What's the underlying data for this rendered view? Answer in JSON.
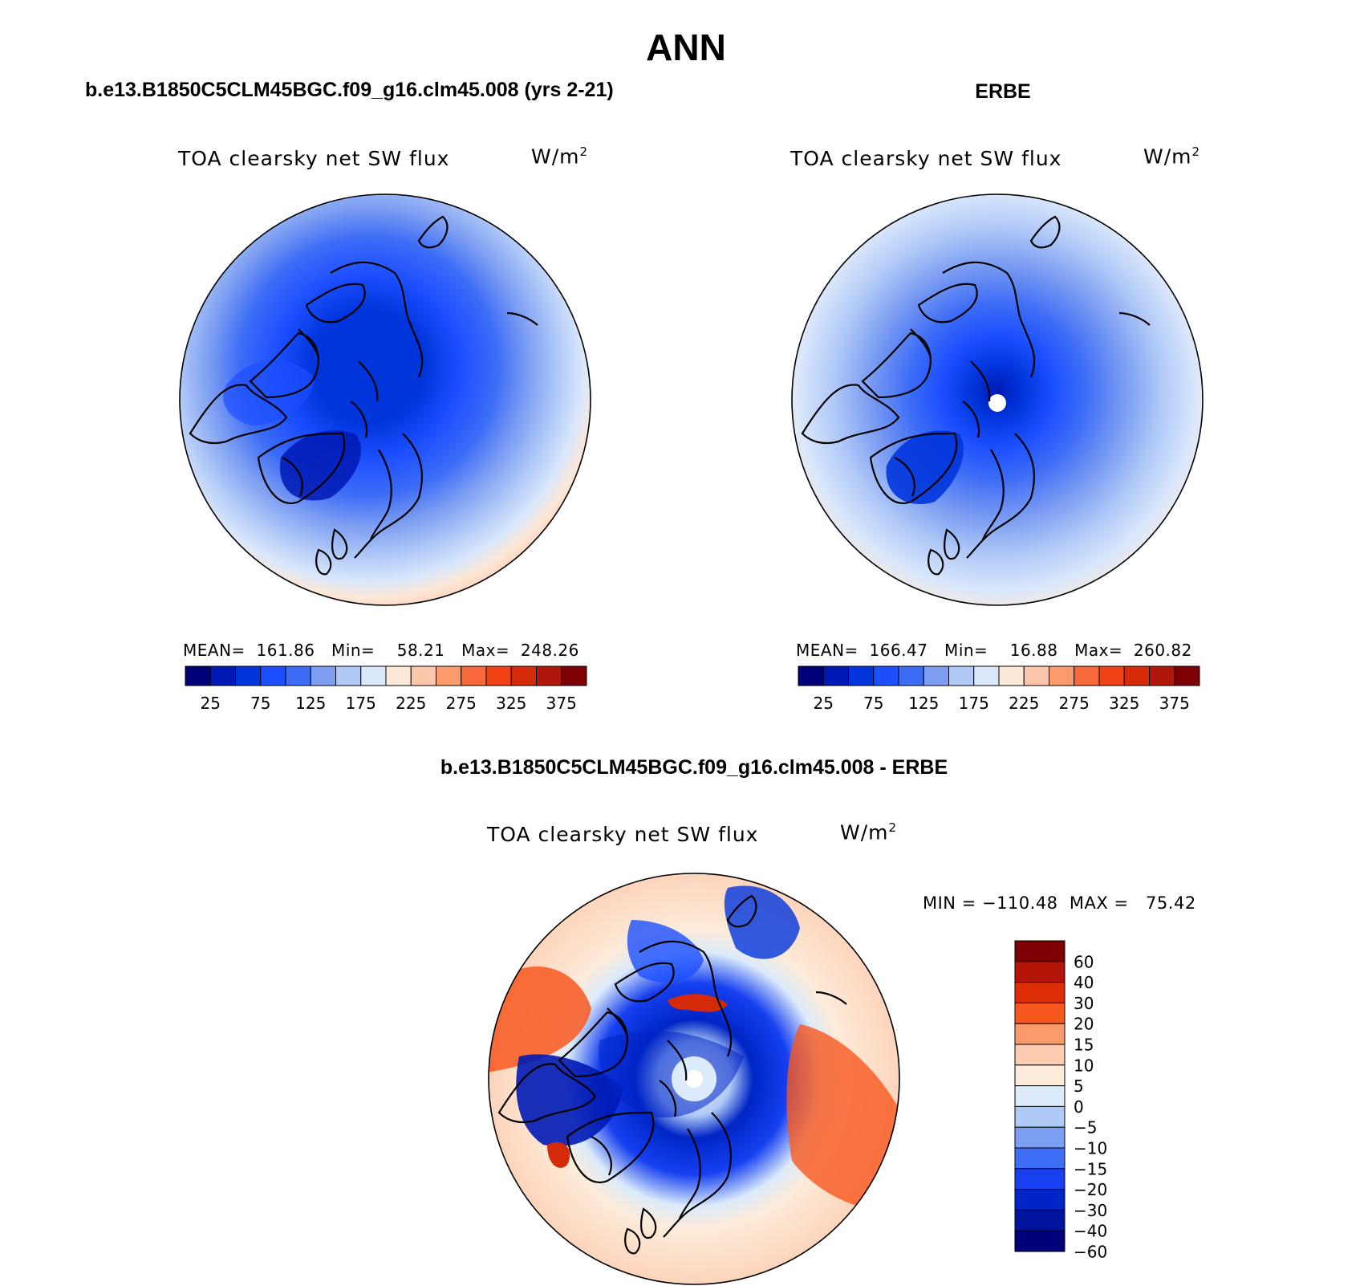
{
  "page": {
    "title": "ANN"
  },
  "panels": {
    "model": {
      "case_title": "b.e13.B1850C5CLM45BGC.f09_g16.clm45.008 (yrs 2-21)",
      "variable_label": "TOA clearsky net SW flux",
      "units_label": "W/m",
      "units_exponent": "2",
      "stats_text": "MEAN=  161.86   Min=    58.21   Max=  248.26",
      "map_palette": "model",
      "colorbar": {
        "colors": [
          "#00007a",
          "#0019b4",
          "#0035dc",
          "#1c4fff",
          "#3c6cf6",
          "#7c9df2",
          "#b0c9f7",
          "#dbe8fb",
          "#fde7d6",
          "#fbc6aa",
          "#fb9a6b",
          "#f7683a",
          "#f04215",
          "#d42a08",
          "#ae1709",
          "#7e0005"
        ],
        "tick_labels": [
          "25",
          "75",
          "125",
          "175",
          "225",
          "275",
          "325",
          "375"
        ]
      }
    },
    "obs": {
      "case_title": "ERBE",
      "variable_label": "TOA clearsky net SW flux",
      "units_label": "W/m",
      "units_exponent": "2",
      "stats_text": "MEAN=  166.47   Min=    16.88   Max=  260.82",
      "map_palette": "obs",
      "colorbar": {
        "colors": [
          "#00007a",
          "#0019b4",
          "#0035dc",
          "#1c4fff",
          "#3c6cf6",
          "#7c9df2",
          "#b0c9f7",
          "#dbe8fb",
          "#fde7d6",
          "#fbc6aa",
          "#fb9a6b",
          "#f7683a",
          "#f04215",
          "#d42a08",
          "#ae1709",
          "#7e0005"
        ],
        "tick_labels": [
          "25",
          "75",
          "125",
          "175",
          "225",
          "275",
          "325",
          "375"
        ]
      }
    },
    "diff": {
      "case_title": "b.e13.B1850C5CLM45BGC.f09_g16.clm45.008 - ERBE",
      "variable_label": "TOA clearsky net SW flux",
      "units_label": "W/m",
      "units_exponent": "2",
      "minmax_text": "MIN = −110.48  MAX =   75.42",
      "map_palette": "diff",
      "colorbar": {
        "colors": [
          "#7e0005",
          "#b41508",
          "#dd2e06",
          "#f8581e",
          "#fa9b6c",
          "#fdcbb0",
          "#fdebd9",
          "#dcebfb",
          "#b0caf8",
          "#7c9ef2",
          "#3e6ff6",
          "#1640f0",
          "#0025c6",
          "#00149e",
          "#00007a"
        ],
        "tick_labels": [
          "60",
          "40",
          "30",
          "20",
          "15",
          "10",
          "5",
          "0",
          "−5",
          "−10",
          "−15",
          "−20",
          "−30",
          "−40",
          "−60"
        ]
      }
    }
  }
}
